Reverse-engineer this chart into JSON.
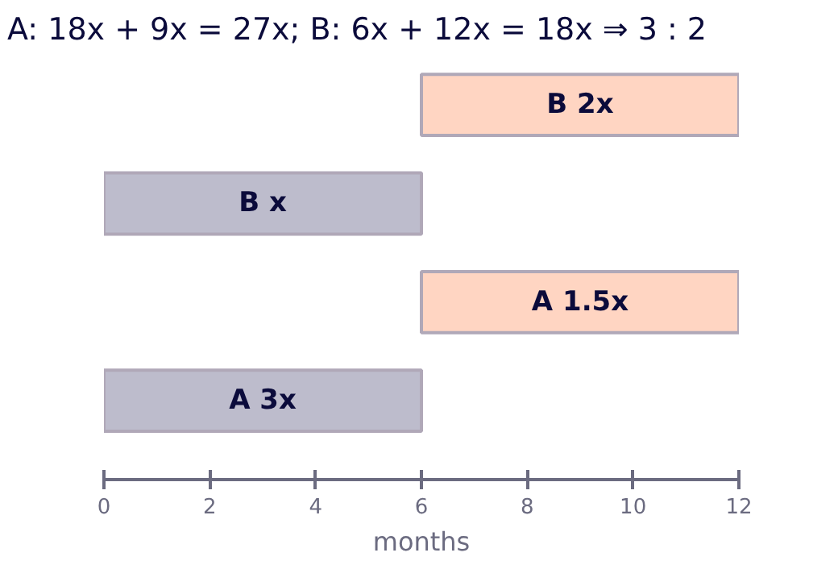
{
  "chart_data": {
    "type": "bar",
    "orientation": "horizontal",
    "title": "A: 18x + 9x = 27x; B: 6x + 12x = 18x ⇒ 3 : 2",
    "xlabel": "months",
    "categories": [
      null,
      null,
      null,
      null
    ],
    "base": [
      6,
      0,
      6,
      0
    ],
    "values": [
      6,
      6,
      6,
      6
    ],
    "value_labels": [
      "B 2x",
      "B x",
      "A 1.5x",
      "A 3x"
    ],
    "colors": [
      "#ffd5c2",
      "#bdbccc",
      "#ffd5c2",
      "#bdbccc"
    ],
    "xlim": [
      0,
      12
    ],
    "xticks": [
      0,
      2,
      4,
      6,
      8,
      10,
      12
    ],
    "grid": false
  }
}
